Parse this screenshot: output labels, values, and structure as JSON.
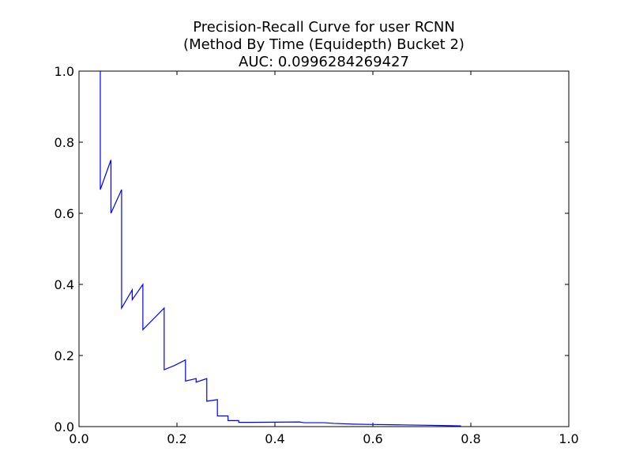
{
  "chart_data": {
    "type": "line",
    "title_lines": [
      "Precision-Recall Curve for user RCNN",
      "(Method By Time (Equidepth) Bucket 2)",
      "AUC: 0.0996284269427"
    ],
    "xlabel": "",
    "ylabel": "",
    "xlim": [
      0.0,
      1.0
    ],
    "ylim": [
      0.0,
      1.0
    ],
    "x_ticks": [
      "0.0",
      "0.2",
      "0.4",
      "0.6",
      "0.8",
      "1.0"
    ],
    "y_ticks": [
      "0.0",
      "0.2",
      "0.4",
      "0.6",
      "0.8",
      "1.0"
    ],
    "grid": false,
    "line_color": "#0000ff",
    "series": [
      {
        "x": [
          0.0435,
          0.0435,
          0.0435,
          0.0652,
          0.0652,
          0.087,
          0.087,
          0.1087,
          0.1087,
          0.1304,
          0.1304,
          0.1739,
          0.1739,
          0.1957,
          0.1957,
          0.2174,
          0.2174,
          0.2391,
          0.2391,
          0.2609,
          0.2609,
          0.2826,
          0.2826,
          0.3043,
          0.3043,
          0.3261,
          0.3261,
          0.35,
          0.45,
          0.46,
          0.5,
          0.52,
          0.56,
          0.6,
          0.65,
          0.7,
          0.74,
          0.78
        ],
        "y": [
          1.0,
          0.6667,
          0.6667,
          0.75,
          0.6,
          0.6667,
          0.3333,
          0.3846,
          0.3571,
          0.4,
          0.2727,
          0.3333,
          0.16,
          0.1724,
          0.1724,
          0.1875,
          0.1282,
          0.1351,
          0.125,
          0.1351,
          0.0714,
          0.0759,
          0.03,
          0.03,
          0.017,
          0.017,
          0.012,
          0.012,
          0.013,
          0.011,
          0.011,
          0.009,
          0.007,
          0.006,
          0.005,
          0.004,
          0.003,
          0.002
        ]
      }
    ]
  }
}
